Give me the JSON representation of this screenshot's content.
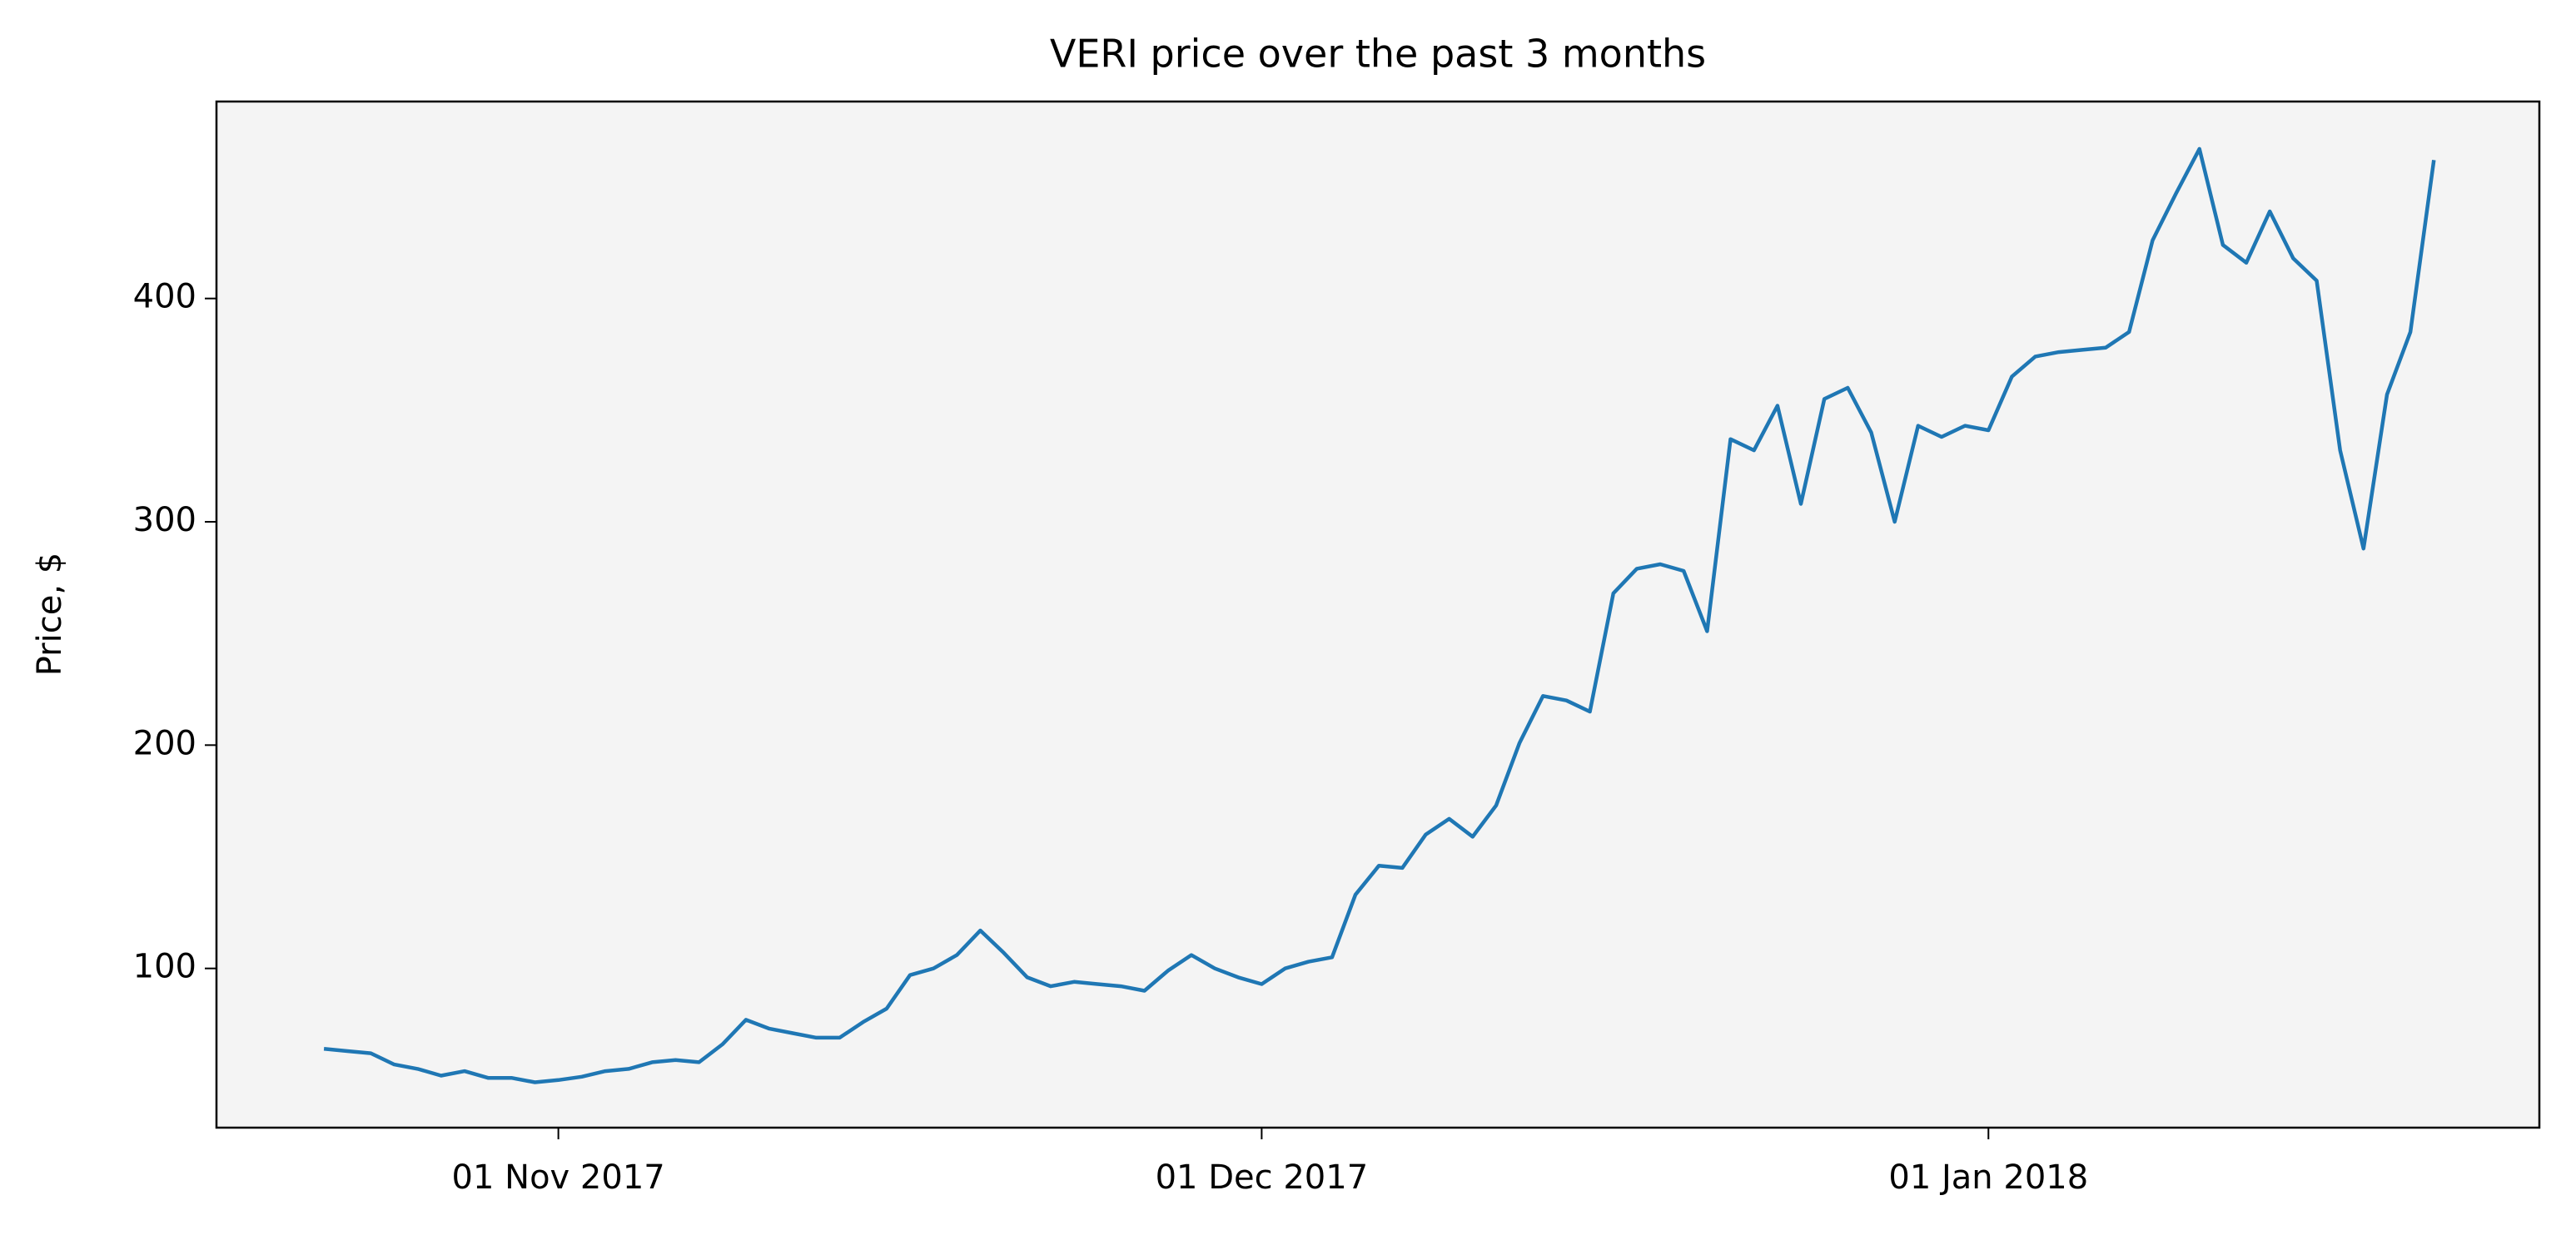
{
  "chart_data": {
    "type": "line",
    "title": "VERI price over the past 3 months",
    "ylabel": "Price, $",
    "x": [
      "2017-10-22",
      "2017-10-23",
      "2017-10-24",
      "2017-10-25",
      "2017-10-26",
      "2017-10-27",
      "2017-10-28",
      "2017-10-29",
      "2017-10-30",
      "2017-10-31",
      "2017-11-01",
      "2017-11-02",
      "2017-11-03",
      "2017-11-04",
      "2017-11-05",
      "2017-11-06",
      "2017-11-07",
      "2017-11-08",
      "2017-11-09",
      "2017-11-10",
      "2017-11-11",
      "2017-11-12",
      "2017-11-13",
      "2017-11-14",
      "2017-11-15",
      "2017-11-16",
      "2017-11-17",
      "2017-11-18",
      "2017-11-19",
      "2017-11-20",
      "2017-11-21",
      "2017-11-22",
      "2017-11-23",
      "2017-11-24",
      "2017-11-25",
      "2017-11-26",
      "2017-11-27",
      "2017-11-28",
      "2017-11-29",
      "2017-11-30",
      "2017-12-01",
      "2017-12-02",
      "2017-12-03",
      "2017-12-04",
      "2017-12-05",
      "2017-12-06",
      "2017-12-07",
      "2017-12-08",
      "2017-12-09",
      "2017-12-10",
      "2017-12-11",
      "2017-12-12",
      "2017-12-13",
      "2017-12-14",
      "2017-12-15",
      "2017-12-16",
      "2017-12-17",
      "2017-12-18",
      "2017-12-19",
      "2017-12-20",
      "2017-12-21",
      "2017-12-22",
      "2017-12-23",
      "2017-12-24",
      "2017-12-25",
      "2017-12-26",
      "2017-12-27",
      "2017-12-28",
      "2017-12-29",
      "2017-12-30",
      "2017-12-31",
      "2018-01-01",
      "2018-01-02",
      "2018-01-03",
      "2018-01-04",
      "2018-01-05",
      "2018-01-06",
      "2018-01-07",
      "2018-01-08",
      "2018-01-09",
      "2018-01-10",
      "2018-01-11",
      "2018-01-12",
      "2018-01-13",
      "2018-01-14",
      "2018-01-15",
      "2018-01-16",
      "2018-01-17",
      "2018-01-18",
      "2018-01-19",
      "2018-01-20"
    ],
    "values": [
      64,
      63,
      62,
      57,
      55,
      52,
      54,
      51,
      51,
      49,
      50,
      51.5,
      54,
      55,
      58,
      59,
      58,
      66,
      77,
      73,
      71,
      69,
      69,
      76,
      82,
      97,
      100,
      106,
      117,
      107,
      96,
      92,
      94,
      93,
      92,
      90,
      99,
      106,
      100,
      96,
      93,
      100,
      103,
      105,
      133,
      146,
      145,
      160,
      167,
      159,
      173,
      201,
      222,
      220,
      215,
      268,
      279,
      281,
      278,
      251,
      337,
      332,
      352,
      308,
      355,
      360,
      340,
      300,
      343,
      338,
      343,
      341,
      365,
      374,
      376,
      377,
      378,
      385,
      426,
      447,
      467,
      424,
      416,
      439,
      418,
      408,
      332,
      288,
      357,
      385,
      462
    ],
    "color": "#1f77b4",
    "xlim": [
      "2017-10-17T10:00",
      "2018-01-24T12:00"
    ],
    "xticks": [
      {
        "value": "2017-11-01",
        "label": "01 Nov 2017"
      },
      {
        "value": "2017-12-01",
        "label": "01 Dec 2017"
      },
      {
        "value": "2018-01-01",
        "label": "01 Jan 2018"
      }
    ],
    "ylim": [
      28.7,
      488.2
    ],
    "yticks": [
      100,
      200,
      300,
      400
    ],
    "grid": false
  }
}
